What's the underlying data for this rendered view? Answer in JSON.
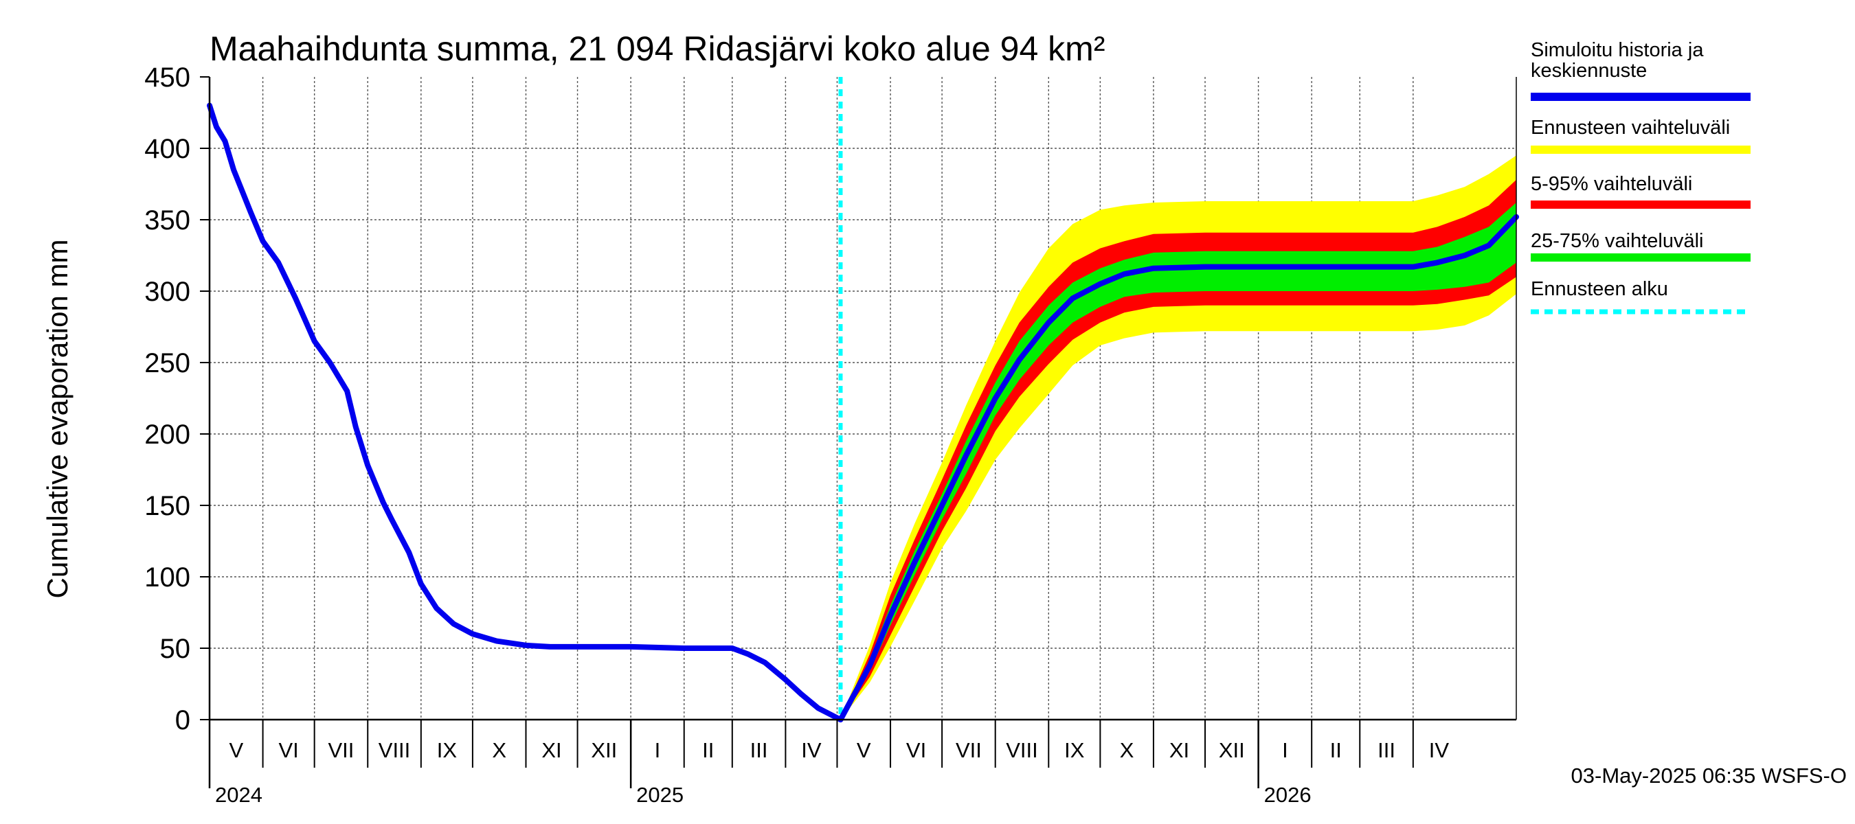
{
  "chart_data": {
    "type": "area",
    "title": "Maahaihdunta summa, 21 094 Ridasjärvi koko alue 94 km²",
    "ylabel": "Cumulative evaporation   mm",
    "xlabel": "",
    "ylim": [
      0,
      450
    ],
    "y_ticks": [
      "0",
      "50",
      "100",
      "150",
      "200",
      "250",
      "300",
      "350",
      "400",
      "450"
    ],
    "grid": true,
    "legend_position": "right",
    "x_start": "2024-05-01",
    "x_end": "2026-05-31",
    "months": [
      "V",
      "VI",
      "VII",
      "VIII",
      "IX",
      "X",
      "XI",
      "XII",
      "I",
      "II",
      "III",
      "IV",
      "V",
      "VI",
      "VII",
      "VIII",
      "IX",
      "X",
      "XI",
      "XII",
      "I",
      "II",
      "III",
      "IV"
    ],
    "years": [
      {
        "label": "2024",
        "date": "2024-05-01"
      },
      {
        "label": "2025",
        "date": "2025-01-01"
      },
      {
        "label": "2026",
        "date": "2026-01-01"
      }
    ],
    "forecast_start": "2025-05-03",
    "footer": "03-May-2025 06:35 WSFS-O",
    "legend": [
      {
        "label": "Simuloitu historia ja keskiennuste",
        "color": "#0000ee",
        "style": "solid"
      },
      {
        "label": "Ennusteen vaihteluväli",
        "color": "#ffff00",
        "style": "solid"
      },
      {
        "label": "5-95% vaihteluväli",
        "color": "#ff0000",
        "style": "solid"
      },
      {
        "label": "25-75% vaihteluväli",
        "color": "#00ee00",
        "style": "solid"
      },
      {
        "label": "Ennusteen alku",
        "color": "#00ffff",
        "style": "dashed"
      }
    ],
    "history": {
      "x": [
        "2024-05-01",
        "2024-05-05",
        "2024-05-10",
        "2024-05-15",
        "2024-05-20",
        "2024-05-25",
        "2024-06-01",
        "2024-06-10",
        "2024-06-20",
        "2024-07-01",
        "2024-07-10",
        "2024-07-20",
        "2024-07-25",
        "2024-08-01",
        "2024-08-10",
        "2024-08-15",
        "2024-08-25",
        "2024-09-01",
        "2024-09-10",
        "2024-09-20",
        "2024-10-01",
        "2024-10-15",
        "2024-11-01",
        "2024-11-15",
        "2024-12-01",
        "2025-01-01",
        "2025-02-01",
        "2025-03-01",
        "2025-03-10",
        "2025-03-20",
        "2025-04-01",
        "2025-04-10",
        "2025-04-20",
        "2025-05-03"
      ],
      "y": [
        430,
        415,
        405,
        385,
        370,
        355,
        335,
        320,
        295,
        265,
        250,
        230,
        205,
        178,
        152,
        140,
        117,
        95,
        78,
        67,
        60,
        55,
        52,
        51,
        51,
        51,
        50,
        50,
        46,
        40,
        28,
        18,
        8,
        0
      ]
    },
    "forecast": {
      "x": [
        "2025-05-03",
        "2025-05-20",
        "2025-06-01",
        "2025-06-15",
        "2025-07-01",
        "2025-07-15",
        "2025-08-01",
        "2025-08-15",
        "2025-09-01",
        "2025-09-15",
        "2025-10-01",
        "2025-10-15",
        "2025-11-01",
        "2025-12-01",
        "2026-01-01",
        "2026-02-01",
        "2026-03-01",
        "2026-03-15",
        "2026-04-01",
        "2026-04-15",
        "2026-05-01",
        "2026-05-15",
        "2026-05-31"
      ],
      "mean": [
        0,
        38,
        73,
        110,
        150,
        185,
        225,
        252,
        278,
        295,
        305,
        312,
        316,
        317,
        317,
        317,
        317,
        317,
        317,
        320,
        325,
        332,
        352
      ],
      "p25": [
        0,
        34,
        66,
        101,
        140,
        172,
        213,
        238,
        262,
        278,
        289,
        296,
        299,
        300,
        300,
        300,
        300,
        300,
        300,
        301,
        303,
        306,
        320
      ],
      "p75": [
        0,
        42,
        80,
        118,
        158,
        195,
        236,
        265,
        290,
        306,
        316,
        322,
        327,
        328,
        328,
        328,
        328,
        328,
        328,
        331,
        338,
        345,
        362
      ],
      "p5": [
        0,
        30,
        59,
        93,
        132,
        162,
        202,
        226,
        249,
        266,
        278,
        285,
        289,
        290,
        290,
        290,
        290,
        290,
        290,
        291,
        294,
        297,
        310
      ],
      "p95": [
        0,
        46,
        87,
        126,
        168,
        206,
        248,
        278,
        303,
        320,
        330,
        335,
        340,
        341,
        341,
        341,
        341,
        341,
        341,
        345,
        352,
        360,
        378
      ],
      "min": [
        0,
        26,
        51,
        83,
        120,
        146,
        182,
        204,
        228,
        248,
        262,
        267,
        271,
        272,
        272,
        272,
        272,
        272,
        272,
        273,
        276,
        283,
        298
      ],
      "max": [
        0,
        52,
        96,
        137,
        180,
        220,
        265,
        299,
        330,
        347,
        357,
        360,
        362,
        363,
        363,
        363,
        363,
        363,
        363,
        367,
        373,
        382,
        395
      ]
    }
  }
}
